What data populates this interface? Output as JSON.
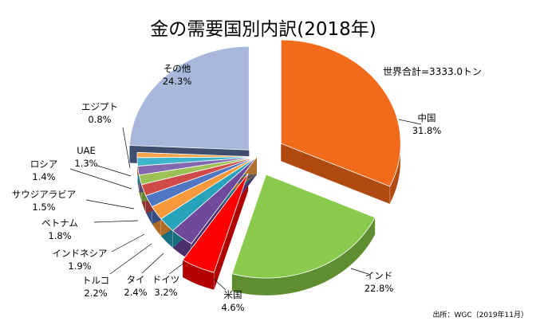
{
  "chart_data": {
    "type": "pie",
    "title": "金の需要国別内訳(2018年)",
    "total_label": "世界合計=3333.0トン",
    "source": "出所：WGC（2019年11月）",
    "style": "3d-exploded",
    "slices": [
      {
        "label": "中国",
        "value_label": "31.8%",
        "value": 31.8,
        "color": "#F26B1D",
        "side": "#B04A10"
      },
      {
        "label": "インド",
        "value_label": "22.8%",
        "value": 22.8,
        "color": "#8ACB4D",
        "side": "#5E8E2F"
      },
      {
        "label": "米国",
        "value_label": "4.6%",
        "value": 4.6,
        "color": "#FF0000",
        "side": "#B00000"
      },
      {
        "label": "ドイツ",
        "value_label": "3.2%",
        "value": 3.2,
        "color": "#6F4A9C",
        "side": "#4A2F6A"
      },
      {
        "label": "タイ",
        "value_label": "2.4%",
        "value": 2.4,
        "color": "#27A3BA",
        "side": "#1A7080"
      },
      {
        "label": "トルコ",
        "value_label": "2.2%",
        "value": 2.2,
        "color": "#F79A3E",
        "side": "#B06A25"
      },
      {
        "label": "インドネシア",
        "value_label": "1.9%",
        "value": 1.9,
        "color": "#5078C2",
        "side": "#354F82"
      },
      {
        "label": "ベトナム",
        "value_label": "1.8%",
        "value": 1.8,
        "color": "#CF4A48",
        "side": "#8E302F"
      },
      {
        "label": "サウジアラビア",
        "value_label": "1.5%",
        "value": 1.5,
        "color": "#9CC257",
        "side": "#6A8639"
      },
      {
        "label": "ロシア",
        "value_label": "1.4%",
        "value": 1.4,
        "color": "#8268AE",
        "side": "#574575"
      },
      {
        "label": "UAE",
        "value_label": "1.3%",
        "value": 1.3,
        "color": "#3DB3CC",
        "side": "#287A8C"
      },
      {
        "label": "エジプト",
        "value_label": "0.8%",
        "value": 0.8,
        "color": "#F7A44A",
        "side": "#B07030"
      },
      {
        "label": "その他",
        "value_label": "24.3%",
        "value": 24.3,
        "color": "#A8B8DA",
        "side": "#3F4E6E"
      }
    ]
  }
}
